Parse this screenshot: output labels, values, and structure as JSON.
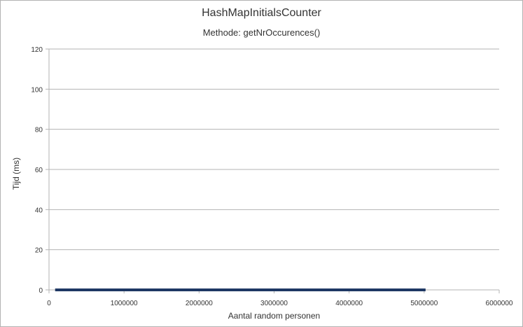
{
  "chart_data": {
    "type": "scatter",
    "title": "HashMapInitialsCounter",
    "subtitle": "Methode: getNrOccurences()",
    "xlabel": "Aantal random personen",
    "ylabel": "Tijd (ms)",
    "xlim": [
      0,
      6000000
    ],
    "ylim": [
      0,
      120
    ],
    "x_ticks": [
      "0",
      "1000000",
      "2000000",
      "3000000",
      "4000000",
      "5000000",
      "6000000"
    ],
    "y_ticks": [
      "0",
      "20",
      "40",
      "60",
      "80",
      "100",
      "120"
    ],
    "grid": "horizontal",
    "legend": "none",
    "series": [
      {
        "x_start": 100000,
        "x_end": 5000000,
        "x_step": 25000,
        "y": 0,
        "marker": "square",
        "color": "#1f3864"
      }
    ],
    "colors": {
      "gridline": "#b3b3b3",
      "axis": "#b3b3b3",
      "marker": "#1f3864",
      "text": "#333333"
    }
  }
}
